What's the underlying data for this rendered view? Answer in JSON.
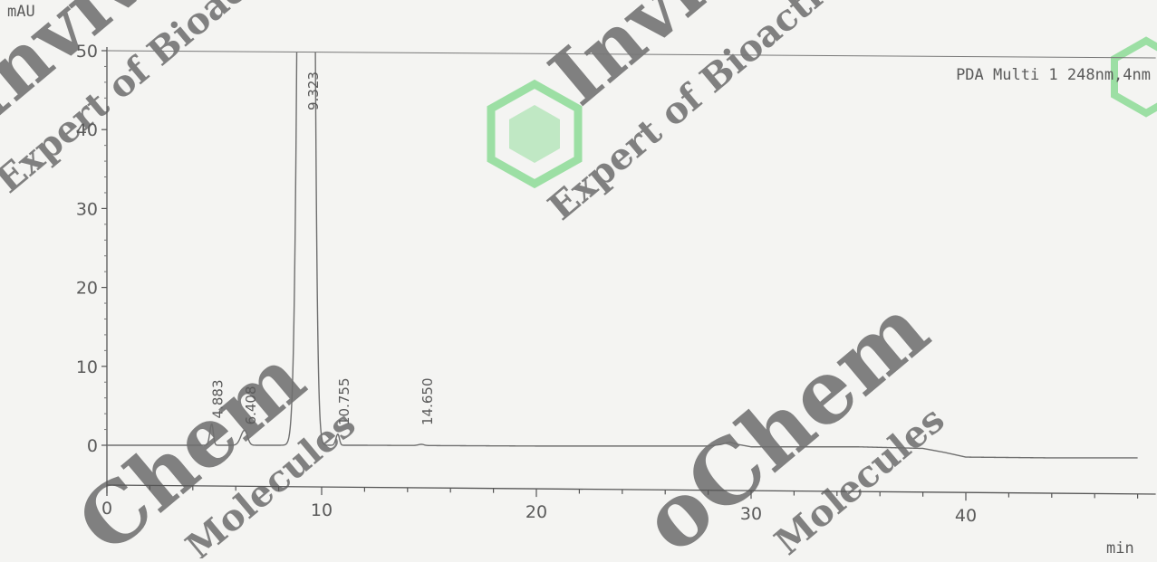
{
  "chart_data": {
    "type": "line",
    "title": "",
    "xlabel": "min",
    "ylabel": "mAU",
    "xlim": [
      0,
      48
    ],
    "ylim": [
      -5,
      50
    ],
    "x_ticks": [
      0,
      10,
      20,
      30,
      40
    ],
    "x_tick_labels": [
      "0",
      "10",
      "20",
      "30",
      "40"
    ],
    "y_ticks": [
      0,
      10,
      20,
      30,
      40,
      50
    ],
    "y_tick_labels": [
      "0",
      "10",
      "20",
      "30",
      "40",
      "50"
    ],
    "grid": false,
    "legend_position": "top-right",
    "series": [
      {
        "name": "PDA Multi 1 248nm,4nm",
        "color": "#6f6f6f",
        "baseline": [
          [
            0,
            0.0
          ],
          [
            3,
            0.0
          ],
          [
            5,
            0.0
          ],
          [
            8,
            0.0
          ],
          [
            12,
            0.0
          ],
          [
            20,
            -0.1
          ],
          [
            28,
            -0.1
          ],
          [
            28.6,
            0.1
          ],
          [
            29,
            0.4
          ],
          [
            29.4,
            0.1
          ],
          [
            30,
            -0.2
          ],
          [
            35,
            -0.2
          ],
          [
            38,
            -0.4
          ],
          [
            39,
            -0.9
          ],
          [
            40,
            -1.5
          ],
          [
            44,
            -1.6
          ],
          [
            48,
            -1.6
          ]
        ],
        "peaks": [
          {
            "rt": 4.883,
            "height": 2.7,
            "width": 0.09
          },
          {
            "rt": 6.408,
            "height": 1.9,
            "width": 0.17
          },
          {
            "rt": 9.323,
            "height": 320,
            "width": 0.25
          },
          {
            "rt": 10.755,
            "height": 1.4,
            "width": 0.09
          },
          {
            "rt": 14.65,
            "height": 0.15,
            "width": 0.15
          }
        ]
      }
    ],
    "peak_labels": [
      "4.883",
      "6.408",
      "9.323",
      "10.755",
      "14.650"
    ]
  },
  "watermark": {
    "logo_text": "InvivoChem",
    "tagline": "Expert of Bioactive Molecules",
    "colors": {
      "red": "#e8676d",
      "green": "#7fd98a",
      "tan": "#d8c27a",
      "teal": "#8fcfc3"
    }
  }
}
